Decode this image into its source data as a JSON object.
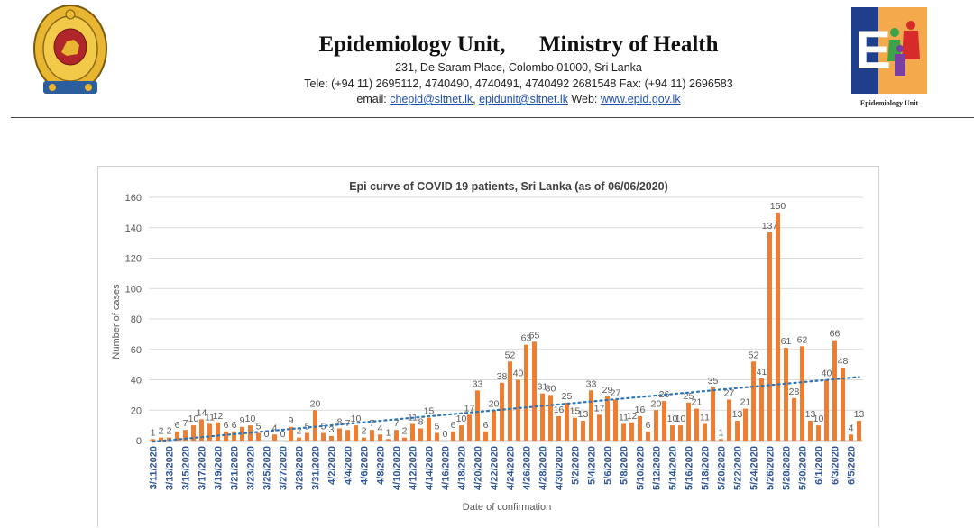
{
  "header": {
    "title": "Epidemiology Unit,      Ministry of Health",
    "address": "231, De Saram Place, Colombo 01000, Sri Lanka",
    "phone": "Tele: (+94 11) 2695112, 4740490, 4740491, 4740492 2681548  Fax: (+94 11) 2696583",
    "email_prefix": "email: ",
    "email1": "chepid@sltnet.lk",
    "email_sep": ", ",
    "email2": "epidunit@sltnet.lk",
    "web_prefix": " Web: ",
    "web": "www.epid.gov.lk",
    "logo_caption": "Epidemiology Unit"
  },
  "colors": {
    "bar": "#ED7D31",
    "trendline": "#2E75B6",
    "tick_label": "#2F5597",
    "grid": "#d9d9d9",
    "text": "#595959"
  },
  "chart_data": {
    "type": "bar",
    "title": "Epi curve of COVID 19 patients, Sri Lanka  (as of 06/06/2020)",
    "xlabel": "Date of confirmation",
    "ylabel": "Number of cases",
    "ylim": [
      0,
      160
    ],
    "yticks": [
      0,
      20,
      40,
      60,
      80,
      100,
      120,
      140,
      160
    ],
    "grid": true,
    "legend": "none",
    "trendline": "linear (dotted)",
    "categories": [
      "3/11/2020",
      "3/12/2020",
      "3/13/2020",
      "3/14/2020",
      "3/15/2020",
      "3/16/2020",
      "3/17/2020",
      "3/18/2020",
      "3/19/2020",
      "3/20/2020",
      "3/21/2020",
      "3/22/2020",
      "3/23/2020",
      "3/24/2020",
      "3/25/2020",
      "3/26/2020",
      "3/27/2020",
      "3/28/2020",
      "3/29/2020",
      "3/30/2020",
      "3/31/2020",
      "4/1/2020",
      "4/2/2020",
      "4/3/2020",
      "4/4/2020",
      "4/5/2020",
      "4/6/2020",
      "4/7/2020",
      "4/8/2020",
      "4/9/2020",
      "4/10/2020",
      "4/11/2020",
      "4/12/2020",
      "4/13/2020",
      "4/14/2020",
      "4/15/2020",
      "4/16/2020",
      "4/17/2020",
      "4/18/2020",
      "4/19/2020",
      "4/20/2020",
      "4/21/2020",
      "4/22/2020",
      "4/23/2020",
      "4/24/2020",
      "4/25/2020",
      "4/26/2020",
      "4/27/2020",
      "4/28/2020",
      "4/29/2020",
      "4/30/2020",
      "5/1/2020",
      "5/2/2020",
      "5/3/2020",
      "5/4/2020",
      "5/5/2020",
      "5/6/2020",
      "5/7/2020",
      "5/8/2020",
      "5/9/2020",
      "5/10/2020",
      "5/11/2020",
      "5/12/2020",
      "5/13/2020",
      "5/14/2020",
      "5/15/2020",
      "5/16/2020",
      "5/17/2020",
      "5/18/2020",
      "5/19/2020",
      "5/20/2020",
      "5/21/2020",
      "5/22/2020",
      "5/23/2020",
      "5/24/2020",
      "5/25/2020",
      "5/26/2020",
      "5/27/2020",
      "5/28/2020",
      "5/29/2020",
      "5/30/2020",
      "5/31/2020",
      "6/1/2020",
      "6/2/2020",
      "6/3/2020",
      "6/4/2020",
      "6/5/2020",
      "6/6/2020"
    ],
    "values": [
      1,
      2,
      2,
      6,
      7,
      10,
      14,
      11,
      12,
      6,
      6,
      9,
      10,
      5,
      0,
      4,
      0,
      9,
      2,
      5,
      20,
      5,
      3,
      8,
      7,
      10,
      2,
      7,
      4,
      1,
      7,
      2,
      11,
      8,
      15,
      5,
      0,
      6,
      10,
      17,
      33,
      6,
      20,
      38,
      52,
      40,
      63,
      65,
      31,
      30,
      16,
      25,
      15,
      13,
      33,
      17,
      29,
      27,
      11,
      12,
      16,
      6,
      20,
      26,
      10,
      10,
      25,
      21,
      11,
      35,
      1,
      27,
      13,
      21,
      52,
      41,
      137,
      150,
      61,
      28,
      62,
      13,
      10,
      40,
      66,
      48,
      4,
      13
    ],
    "tick_labels": [
      "3/11/2020",
      "3/13/2020",
      "3/15/2020",
      "3/17/2020",
      "3/19/2020",
      "3/21/2020",
      "3/23/2020",
      "3/25/2020",
      "3/27/2020",
      "3/29/2020",
      "3/31/2020",
      "4/2/2020",
      "4/4/2020",
      "4/6/2020",
      "4/8/2020",
      "4/10/2020",
      "4/12/2020",
      "4/14/2020",
      "4/16/2020",
      "4/18/2020",
      "4/20/2020",
      "4/22/2020",
      "4/24/2020",
      "4/26/2020",
      "4/28/2020",
      "4/30/2020",
      "5/2/2020",
      "5/4/2020",
      "5/6/2020",
      "5/8/2020",
      "5/10/2020",
      "5/12/2020",
      "5/14/2020",
      "5/16/2020",
      "5/18/2020",
      "5/20/2020",
      "5/22/2020",
      "5/24/2020",
      "5/26/2020",
      "5/28/2020",
      "5/30/2020",
      "6/1/2020",
      "6/3/2020",
      "6/5/2020"
    ]
  }
}
